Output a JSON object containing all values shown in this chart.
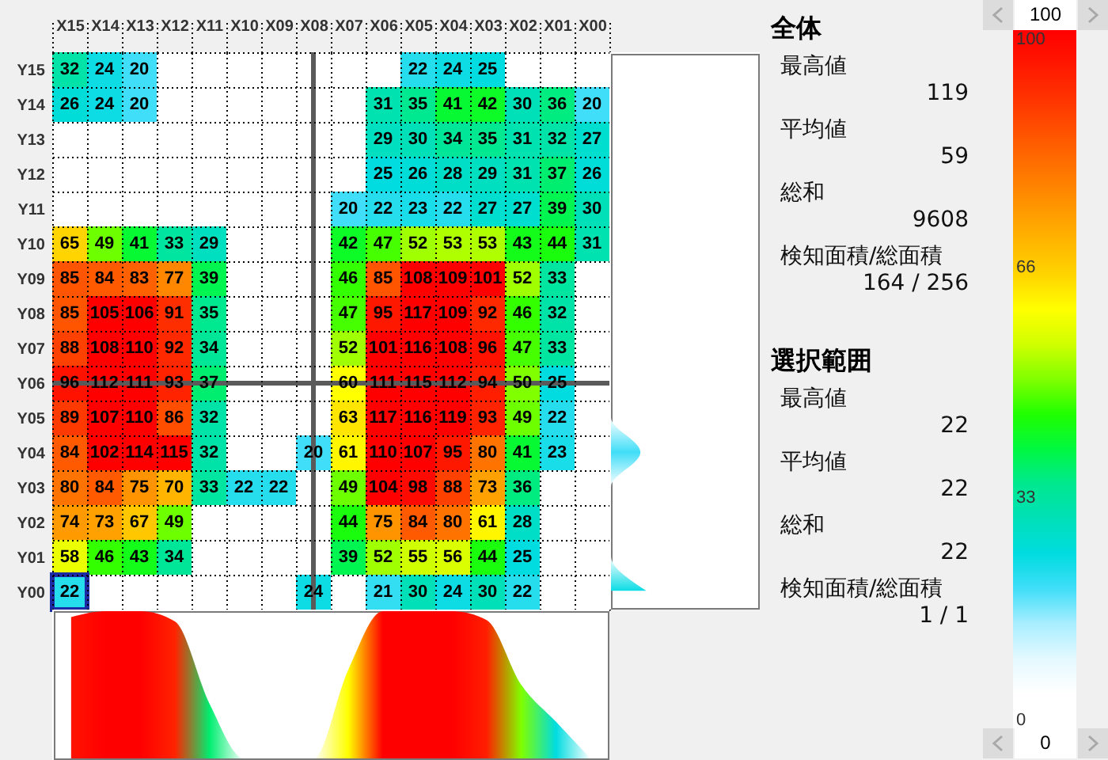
{
  "chart_data": [
    {
      "type": "heatmap",
      "categories": [
        "X15",
        "X14",
        "X13",
        "X12",
        "X11",
        "X10",
        "X09",
        "X08",
        "X07",
        "X06",
        "X05",
        "X04",
        "X03",
        "X02",
        "X01",
        "X00"
      ],
      "y_categories": [
        "Y15",
        "Y14",
        "Y13",
        "Y12",
        "Y11",
        "Y10",
        "Y09",
        "Y08",
        "Y07",
        "Y06",
        "Y05",
        "Y04",
        "Y03",
        "Y02",
        "Y01",
        "Y00"
      ],
      "cells": [
        [
          32,
          24,
          20,
          null,
          null,
          null,
          null,
          null,
          null,
          null,
          22,
          24,
          25,
          null,
          null,
          null
        ],
        [
          26,
          24,
          20,
          null,
          null,
          null,
          null,
          null,
          null,
          31,
          35,
          41,
          42,
          30,
          36,
          20
        ],
        [
          null,
          null,
          null,
          null,
          null,
          null,
          null,
          null,
          null,
          29,
          30,
          34,
          35,
          31,
          32,
          27
        ],
        [
          null,
          null,
          null,
          null,
          null,
          null,
          null,
          null,
          null,
          25,
          26,
          28,
          29,
          31,
          37,
          26
        ],
        [
          null,
          null,
          null,
          null,
          null,
          null,
          null,
          null,
          20,
          22,
          23,
          22,
          27,
          27,
          39,
          30
        ],
        [
          65,
          49,
          41,
          33,
          29,
          null,
          null,
          null,
          42,
          47,
          52,
          53,
          53,
          43,
          44,
          31
        ],
        [
          85,
          84,
          83,
          77,
          39,
          null,
          null,
          null,
          46,
          85,
          108,
          109,
          101,
          52,
          33,
          null
        ],
        [
          85,
          105,
          106,
          91,
          35,
          null,
          null,
          null,
          47,
          95,
          117,
          109,
          92,
          46,
          32,
          null
        ],
        [
          88,
          108,
          110,
          92,
          34,
          null,
          null,
          null,
          52,
          101,
          116,
          108,
          96,
          47,
          33,
          null
        ],
        [
          96,
          112,
          111,
          93,
          37,
          null,
          null,
          null,
          60,
          111,
          115,
          112,
          94,
          50,
          25,
          null
        ],
        [
          89,
          107,
          110,
          86,
          32,
          null,
          null,
          null,
          63,
          117,
          116,
          119,
          93,
          49,
          22,
          null
        ],
        [
          84,
          102,
          114,
          115,
          32,
          null,
          null,
          20,
          61,
          110,
          107,
          95,
          80,
          41,
          23,
          null
        ],
        [
          80,
          84,
          75,
          70,
          33,
          22,
          22,
          null,
          49,
          104,
          98,
          88,
          73,
          36,
          null,
          null
        ],
        [
          74,
          73,
          67,
          49,
          null,
          null,
          null,
          null,
          44,
          75,
          84,
          80,
          61,
          28,
          null,
          null
        ],
        [
          58,
          46,
          43,
          34,
          null,
          null,
          null,
          null,
          39,
          52,
          55,
          56,
          44,
          25,
          null,
          null
        ],
        [
          22,
          null,
          null,
          null,
          null,
          null,
          null,
          24,
          null,
          21,
          30,
          24,
          30,
          22,
          null,
          null
        ]
      ],
      "clim": [
        0,
        100
      ],
      "cticks": [
        0,
        33,
        66,
        100
      ],
      "data_labels": true,
      "grid": true,
      "ref_lines": [
        {
          "axis": "x",
          "value": "X08",
          "color": "#5a5a5a"
        },
        {
          "axis": "y",
          "value": "Y06",
          "color": "#5a5a5a"
        }
      ],
      "annotations": [
        "100",
        "0"
      ]
    },
    {
      "type": "other",
      "title": "全体",
      "annotations": [
        "最高値",
        "119",
        "平均値",
        "59",
        "総和",
        "9608",
        "検知面積/総面積",
        "164 / 256"
      ]
    },
    {
      "type": "other",
      "title": "選択範囲",
      "annotations": [
        "最高値",
        "22",
        "平均値",
        "22",
        "総和",
        "22",
        "検知面積/総面積",
        "1 / 1"
      ]
    }
  ]
}
